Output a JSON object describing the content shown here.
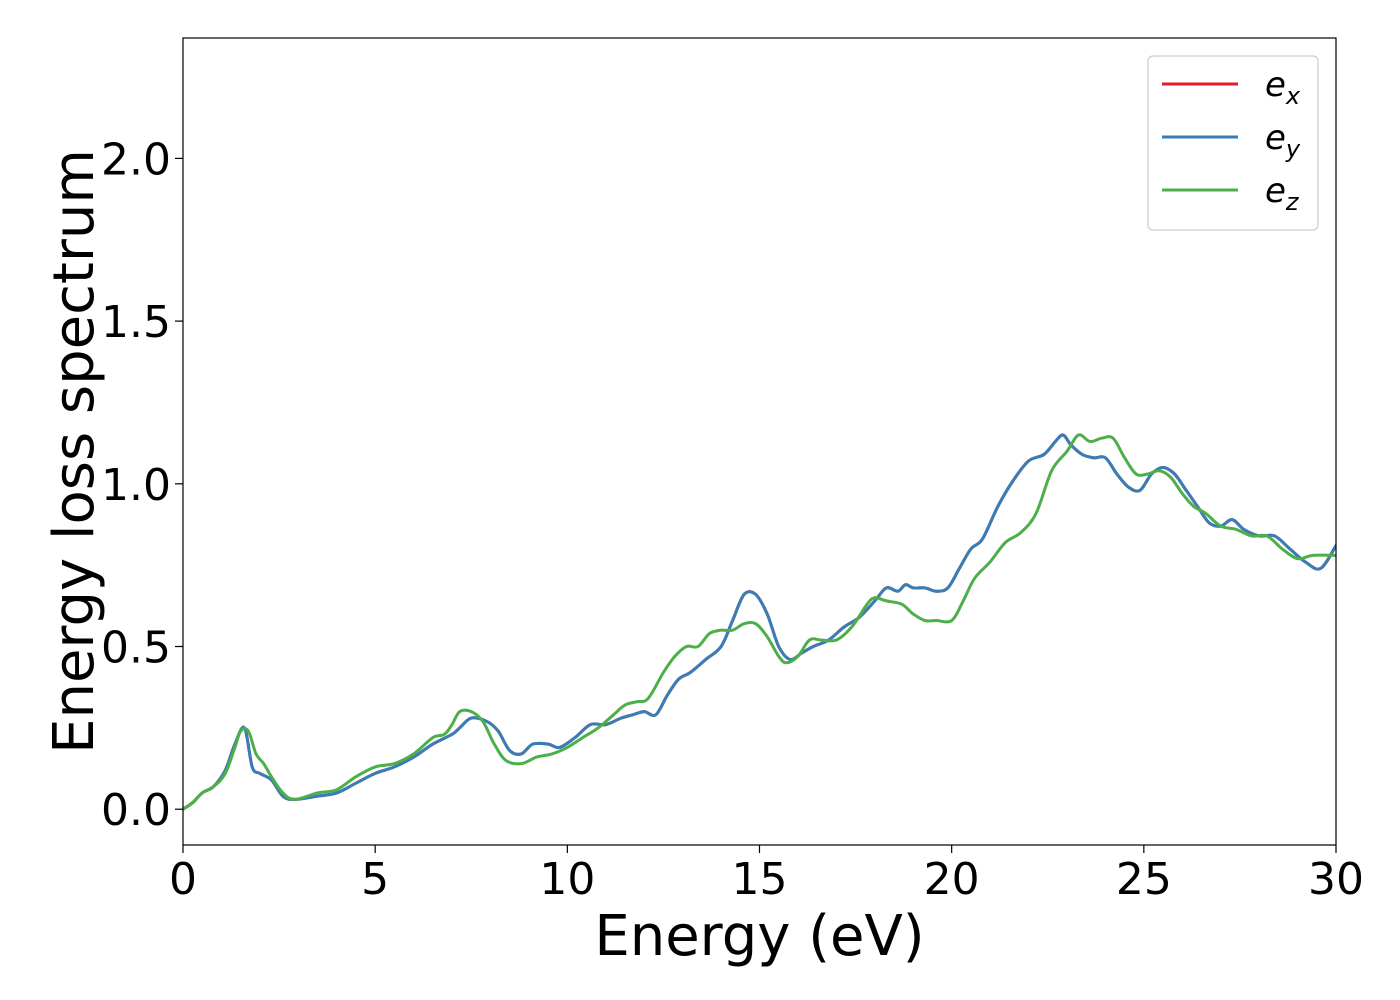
{
  "chart_data": {
    "type": "line",
    "xlabel": "Energy (eV)",
    "ylabel": "Energy loss spectrum",
    "xlim": [
      0,
      30
    ],
    "ylim": [
      -0.11,
      2.37
    ],
    "xticks": [
      0,
      5,
      10,
      15,
      20,
      25,
      30
    ],
    "xtick_labels": [
      "0",
      "5",
      "10",
      "15",
      "20",
      "25",
      "30"
    ],
    "yticks": [
      0.0,
      0.5,
      1.0,
      1.5,
      2.0
    ],
    "ytick_labels": [
      "0.0",
      "0.5",
      "1.0",
      "1.5",
      "2.0"
    ],
    "grid": false,
    "legend_position": "top-right",
    "series": [
      {
        "name": "e_x",
        "label_base": "e",
        "label_sub": "x",
        "color": "#e41a1c",
        "x": [
          0,
          0.25,
          0.5,
          0.8,
          1.1,
          1.35,
          1.6,
          1.8,
          2.0,
          2.3,
          2.6,
          2.9,
          3.5,
          4.0,
          4.5,
          5.0,
          5.5,
          6.0,
          6.5,
          7.0,
          7.2,
          7.5,
          7.9,
          8.2,
          8.5,
          8.8,
          9.1,
          9.5,
          9.8,
          10.2,
          10.6,
          11.0,
          11.4,
          11.7,
          12.0,
          12.3,
          12.6,
          12.9,
          13.2,
          13.6,
          14.0,
          14.3,
          14.6,
          14.9,
          15.2,
          15.5,
          15.8,
          16.1,
          16.4,
          16.8,
          17.2,
          17.6,
          18.0,
          18.3,
          18.6,
          18.8,
          19.0,
          19.3,
          19.6,
          19.9,
          20.2,
          20.5,
          20.8,
          21.2,
          21.6,
          22.0,
          22.4,
          22.7,
          22.9,
          23.1,
          23.4,
          23.7,
          24.0,
          24.3,
          24.6,
          24.9,
          25.2,
          25.5,
          25.8,
          26.1,
          26.4,
          26.7,
          27.0,
          27.3,
          27.6,
          28.0,
          28.4,
          28.8,
          29.2,
          29.6,
          30.0
        ],
        "y": [
          0.0,
          0.02,
          0.05,
          0.07,
          0.12,
          0.2,
          0.25,
          0.13,
          0.11,
          0.09,
          0.04,
          0.03,
          0.04,
          0.05,
          0.08,
          0.11,
          0.13,
          0.16,
          0.2,
          0.23,
          0.25,
          0.28,
          0.27,
          0.24,
          0.18,
          0.17,
          0.2,
          0.2,
          0.19,
          0.22,
          0.26,
          0.26,
          0.28,
          0.29,
          0.3,
          0.29,
          0.35,
          0.4,
          0.42,
          0.46,
          0.5,
          0.58,
          0.66,
          0.66,
          0.6,
          0.5,
          0.46,
          0.48,
          0.5,
          0.52,
          0.56,
          0.59,
          0.64,
          0.68,
          0.67,
          0.69,
          0.68,
          0.68,
          0.67,
          0.68,
          0.74,
          0.8,
          0.83,
          0.93,
          1.01,
          1.07,
          1.09,
          1.13,
          1.15,
          1.12,
          1.09,
          1.08,
          1.08,
          1.03,
          0.99,
          0.98,
          1.03,
          1.05,
          1.03,
          0.98,
          0.93,
          0.88,
          0.87,
          0.89,
          0.86,
          0.84,
          0.84,
          0.8,
          0.76,
          0.74,
          0.81
        ]
      },
      {
        "name": "e_y",
        "label_base": "e",
        "label_sub": "y",
        "color": "#377eb8",
        "x": [
          0,
          0.25,
          0.5,
          0.8,
          1.1,
          1.35,
          1.6,
          1.8,
          2.0,
          2.3,
          2.6,
          2.9,
          3.5,
          4.0,
          4.5,
          5.0,
          5.5,
          6.0,
          6.5,
          7.0,
          7.2,
          7.5,
          7.9,
          8.2,
          8.5,
          8.8,
          9.1,
          9.5,
          9.8,
          10.2,
          10.6,
          11.0,
          11.4,
          11.7,
          12.0,
          12.3,
          12.6,
          12.9,
          13.2,
          13.6,
          14.0,
          14.3,
          14.6,
          14.9,
          15.2,
          15.5,
          15.8,
          16.1,
          16.4,
          16.8,
          17.2,
          17.6,
          18.0,
          18.3,
          18.6,
          18.8,
          19.0,
          19.3,
          19.6,
          19.9,
          20.2,
          20.5,
          20.8,
          21.2,
          21.6,
          22.0,
          22.4,
          22.7,
          22.9,
          23.1,
          23.4,
          23.7,
          24.0,
          24.3,
          24.6,
          24.9,
          25.2,
          25.5,
          25.8,
          26.1,
          26.4,
          26.7,
          27.0,
          27.3,
          27.6,
          28.0,
          28.4,
          28.8,
          29.2,
          29.6,
          30.0
        ],
        "y": [
          0.0,
          0.02,
          0.05,
          0.07,
          0.12,
          0.2,
          0.25,
          0.13,
          0.11,
          0.09,
          0.04,
          0.03,
          0.04,
          0.05,
          0.08,
          0.11,
          0.13,
          0.16,
          0.2,
          0.23,
          0.25,
          0.28,
          0.27,
          0.24,
          0.18,
          0.17,
          0.2,
          0.2,
          0.19,
          0.22,
          0.26,
          0.26,
          0.28,
          0.29,
          0.3,
          0.29,
          0.35,
          0.4,
          0.42,
          0.46,
          0.5,
          0.58,
          0.66,
          0.66,
          0.6,
          0.5,
          0.46,
          0.48,
          0.5,
          0.52,
          0.56,
          0.59,
          0.64,
          0.68,
          0.67,
          0.69,
          0.68,
          0.68,
          0.67,
          0.68,
          0.74,
          0.8,
          0.83,
          0.93,
          1.01,
          1.07,
          1.09,
          1.13,
          1.15,
          1.12,
          1.09,
          1.08,
          1.08,
          1.03,
          0.99,
          0.98,
          1.03,
          1.05,
          1.03,
          0.98,
          0.93,
          0.88,
          0.87,
          0.89,
          0.86,
          0.84,
          0.84,
          0.8,
          0.76,
          0.74,
          0.81
        ]
      },
      {
        "name": "e_z",
        "label_base": "e",
        "label_sub": "z",
        "color": "#4daf4a",
        "x": [
          0,
          0.25,
          0.5,
          0.8,
          1.1,
          1.35,
          1.5,
          1.7,
          1.9,
          2.1,
          2.3,
          2.6,
          2.9,
          3.5,
          4.0,
          4.5,
          5.0,
          5.5,
          6.0,
          6.5,
          6.8,
          7.0,
          7.2,
          7.5,
          7.8,
          8.1,
          8.4,
          8.8,
          9.2,
          9.6,
          10.0,
          10.4,
          10.8,
          11.2,
          11.5,
          11.8,
          12.1,
          12.5,
          12.8,
          13.1,
          13.4,
          13.7,
          14.0,
          14.3,
          14.6,
          14.9,
          15.2,
          15.5,
          15.7,
          16.0,
          16.3,
          16.6,
          17.0,
          17.4,
          17.8,
          18.0,
          18.3,
          18.7,
          19.0,
          19.3,
          19.6,
          20.0,
          20.3,
          20.6,
          21.0,
          21.4,
          21.8,
          22.2,
          22.6,
          23.0,
          23.3,
          23.6,
          23.9,
          24.2,
          24.5,
          24.8,
          25.1,
          25.4,
          25.7,
          26.0,
          26.3,
          26.6,
          27.0,
          27.4,
          27.8,
          28.2,
          28.6,
          29.0,
          29.4,
          30.0
        ],
        "y": [
          0.0,
          0.02,
          0.05,
          0.07,
          0.11,
          0.19,
          0.24,
          0.24,
          0.17,
          0.14,
          0.1,
          0.05,
          0.03,
          0.05,
          0.06,
          0.1,
          0.13,
          0.14,
          0.17,
          0.22,
          0.23,
          0.26,
          0.3,
          0.3,
          0.27,
          0.2,
          0.15,
          0.14,
          0.16,
          0.17,
          0.19,
          0.22,
          0.25,
          0.29,
          0.32,
          0.33,
          0.34,
          0.42,
          0.47,
          0.5,
          0.5,
          0.54,
          0.55,
          0.55,
          0.57,
          0.57,
          0.53,
          0.47,
          0.45,
          0.47,
          0.52,
          0.52,
          0.52,
          0.56,
          0.63,
          0.65,
          0.64,
          0.63,
          0.6,
          0.58,
          0.58,
          0.58,
          0.64,
          0.71,
          0.76,
          0.82,
          0.85,
          0.91,
          1.04,
          1.1,
          1.15,
          1.13,
          1.14,
          1.14,
          1.08,
          1.03,
          1.03,
          1.04,
          1.02,
          0.97,
          0.93,
          0.91,
          0.87,
          0.86,
          0.84,
          0.84,
          0.8,
          0.77,
          0.78,
          0.78
        ]
      }
    ]
  }
}
